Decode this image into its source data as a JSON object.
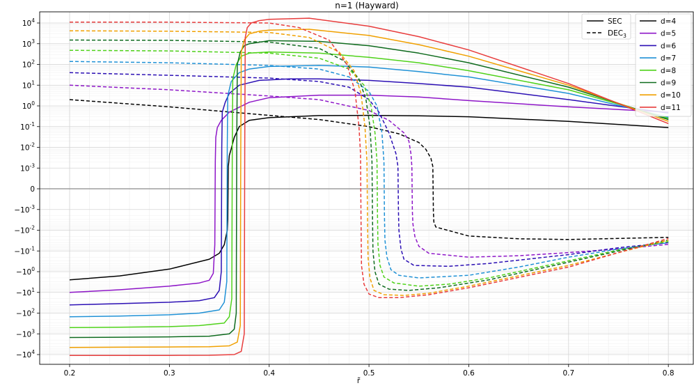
{
  "chart_data": {
    "type": "line",
    "title": "n=1 (Hayward)",
    "xlabel": "r̃",
    "ylabel": "",
    "xlim": [
      0.17,
      0.825
    ],
    "xticks": [
      0.2,
      0.3,
      0.4,
      0.5,
      0.6,
      0.7,
      0.8
    ],
    "yscale": "symlog",
    "linthresh": 0.001,
    "ylim": [
      -30000,
      30000
    ],
    "yticks": [
      {
        "value": 10000,
        "base": "10",
        "exp": "4"
      },
      {
        "value": 1000,
        "base": "10",
        "exp": "3"
      },
      {
        "value": 100,
        "base": "10",
        "exp": "2"
      },
      {
        "value": 10,
        "base": "10",
        "exp": "1"
      },
      {
        "value": 1,
        "base": "10",
        "exp": "0"
      },
      {
        "value": 0.1,
        "base": "10",
        "exp": "-1"
      },
      {
        "value": 0.01,
        "base": "10",
        "exp": "-2"
      },
      {
        "value": 0.001,
        "base": "10",
        "exp": "-3"
      },
      {
        "value": 0,
        "base": "0",
        "exp": ""
      },
      {
        "value": -0.001,
        "base": "−10",
        "exp": "-3"
      },
      {
        "value": -0.01,
        "base": "−10",
        "exp": "-2"
      },
      {
        "value": -0.1,
        "base": "−10",
        "exp": "-1"
      },
      {
        "value": -1,
        "base": "−10",
        "exp": "0"
      },
      {
        "value": -10,
        "base": "−10",
        "exp": "1"
      },
      {
        "value": -100,
        "base": "−10",
        "exp": "2"
      },
      {
        "value": -1000,
        "base": "−10",
        "exp": "3"
      },
      {
        "value": -10000,
        "base": "−10",
        "exp": "4"
      }
    ],
    "grid": true,
    "style_legend": {
      "placement": "top-right",
      "entries": [
        {
          "label": "SEC",
          "dash": "solid"
        },
        {
          "label": "DEC",
          "sub": "3",
          "dash": "dashed"
        }
      ]
    },
    "series_legend": {
      "placement": "top-right",
      "entries": [
        "d=4",
        "d=5",
        "d=6",
        "d=7",
        "d=8",
        "d=9",
        "d=10",
        "d=11"
      ]
    },
    "series": [
      {
        "name": "d=4",
        "color": "#000000",
        "sec": {
          "x": [
            0.2,
            0.25,
            0.3,
            0.34,
            0.35,
            0.355,
            0.358,
            0.3585,
            0.359,
            0.3595,
            0.36,
            0.362,
            0.365,
            0.37,
            0.38,
            0.4,
            0.45,
            0.5,
            0.55,
            0.6,
            0.7,
            0.8
          ],
          "y": [
            -2.5,
            -1.6,
            -0.75,
            -0.25,
            -0.13,
            -0.05,
            -0.01,
            -0.003,
            0.0012,
            0.002,
            0.004,
            0.0085,
            0.03,
            0.1,
            0.2,
            0.27,
            0.34,
            0.35,
            0.33,
            0.3,
            0.18,
            0.09
          ]
        },
        "dec": {
          "x": [
            0.2,
            0.3,
            0.4,
            0.45,
            0.5,
            0.53,
            0.55,
            0.557,
            0.562,
            0.564,
            0.5645,
            0.565,
            0.567,
            0.575,
            0.6,
            0.65,
            0.7,
            0.75,
            0.8
          ],
          "y": [
            2.0,
            0.9,
            0.35,
            0.22,
            0.1,
            0.045,
            0.017,
            0.008,
            0.003,
            0.0012,
            -0.0012,
            -0.004,
            -0.007,
            -0.009,
            -0.019,
            -0.026,
            -0.028,
            -0.025,
            -0.022
          ]
        }
      },
      {
        "name": "d=5",
        "color": "#8e16c8",
        "sec": {
          "x": [
            0.2,
            0.25,
            0.3,
            0.33,
            0.34,
            0.344,
            0.3455,
            0.346,
            0.3465,
            0.348,
            0.352,
            0.36,
            0.38,
            0.4,
            0.45,
            0.5,
            0.55,
            0.6,
            0.7,
            0.8
          ],
          "y": [
            -10,
            -7.5,
            -5,
            -3.5,
            -2.6,
            -1.2,
            -0.05,
            0.002,
            0.03,
            0.09,
            0.2,
            0.5,
            1.5,
            2.5,
            3.3,
            3.3,
            2.7,
            1.8,
            0.9,
            0.5
          ]
        },
        "dec": {
          "x": [
            0.2,
            0.3,
            0.4,
            0.45,
            0.5,
            0.52,
            0.535,
            0.54,
            0.542,
            0.543,
            0.5435,
            0.544,
            0.546,
            0.55,
            0.56,
            0.6,
            0.65,
            0.7,
            0.75,
            0.8
          ],
          "y": [
            10,
            6,
            3,
            2,
            0.6,
            0.2,
            0.05,
            0.02,
            0.005,
            0.0012,
            -0.0012,
            -0.005,
            -0.02,
            -0.06,
            -0.13,
            -0.2,
            -0.17,
            -0.12,
            -0.08,
            -0.048
          ]
        }
      },
      {
        "name": "d=6",
        "color": "#2b0fb4",
        "sec": {
          "x": [
            0.2,
            0.25,
            0.3,
            0.33,
            0.345,
            0.35,
            0.352,
            0.3525,
            0.353,
            0.356,
            0.36,
            0.37,
            0.39,
            0.42,
            0.45,
            0.5,
            0.55,
            0.6,
            0.7,
            0.8
          ],
          "y": [
            -40,
            -35,
            -30,
            -25,
            -18,
            -8,
            -1,
            0.01,
            0.5,
            1.5,
            4,
            10,
            17,
            20,
            20,
            17,
            12,
            8,
            2,
            0.45
          ]
        },
        "dec": {
          "x": [
            0.2,
            0.3,
            0.4,
            0.45,
            0.48,
            0.5,
            0.51,
            0.52,
            0.527,
            0.529,
            0.5295,
            0.53,
            0.532,
            0.535,
            0.545,
            0.58,
            0.62,
            0.7,
            0.75,
            0.8
          ],
          "y": [
            40,
            30,
            22,
            15,
            8,
            2,
            0.5,
            0.05,
            0.005,
            0.0012,
            -0.0012,
            -0.01,
            -0.08,
            -0.25,
            -0.5,
            -0.55,
            -0.4,
            -0.15,
            -0.07,
            -0.04
          ]
        }
      },
      {
        "name": "d=7",
        "color": "#1f91d6",
        "sec": {
          "x": [
            0.2,
            0.25,
            0.3,
            0.33,
            0.35,
            0.355,
            0.3575,
            0.358,
            0.3585,
            0.362,
            0.37,
            0.38,
            0.4,
            0.45,
            0.5,
            0.55,
            0.6,
            0.7,
            0.8
          ],
          "y": [
            -150,
            -140,
            -120,
            -100,
            -70,
            -30,
            -3,
            0.01,
            3,
            15,
            40,
            60,
            80,
            90,
            75,
            45,
            25,
            4,
            0.28
          ]
        },
        "dec": {
          "x": [
            0.2,
            0.3,
            0.4,
            0.45,
            0.48,
            0.5,
            0.508,
            0.513,
            0.515,
            0.5155,
            0.516,
            0.518,
            0.522,
            0.53,
            0.55,
            0.6,
            0.65,
            0.7,
            0.75,
            0.8
          ],
          "y": [
            140,
            120,
            90,
            60,
            25,
            5,
            1,
            0.05,
            0.002,
            -0.002,
            -0.03,
            -0.2,
            -0.8,
            -1.5,
            -2,
            -1.5,
            -0.6,
            -0.2,
            -0.08,
            -0.04
          ]
        }
      },
      {
        "name": "d=8",
        "color": "#4fd21a",
        "sec": {
          "x": [
            0.2,
            0.25,
            0.3,
            0.33,
            0.355,
            0.36,
            0.3625,
            0.363,
            0.3635,
            0.367,
            0.372,
            0.38,
            0.4,
            0.45,
            0.5,
            0.55,
            0.6,
            0.7,
            0.8
          ],
          "y": [
            -500,
            -480,
            -450,
            -400,
            -300,
            -150,
            -20,
            0.01,
            20,
            100,
            250,
            350,
            400,
            350,
            220,
            120,
            50,
            6,
            0.25
          ]
        },
        "dec": {
          "x": [
            0.2,
            0.3,
            0.4,
            0.45,
            0.48,
            0.495,
            0.502,
            0.506,
            0.508,
            0.5085,
            0.509,
            0.511,
            0.515,
            0.525,
            0.55,
            0.58,
            0.62,
            0.7,
            0.75,
            0.8
          ],
          "y": [
            480,
            450,
            350,
            200,
            60,
            10,
            1,
            0.05,
            0.002,
            -0.002,
            -0.05,
            -0.5,
            -1.8,
            -3.5,
            -5,
            -4,
            -2,
            -0.3,
            -0.09,
            -0.035
          ]
        }
      },
      {
        "name": "d=9",
        "color": "#0f6b1e",
        "sec": {
          "x": [
            0.2,
            0.25,
            0.3,
            0.34,
            0.36,
            0.365,
            0.367,
            0.3675,
            0.368,
            0.371,
            0.375,
            0.38,
            0.4,
            0.45,
            0.5,
            0.55,
            0.6,
            0.7,
            0.8
          ],
          "y": [
            -1500,
            -1450,
            -1400,
            -1300,
            -1000,
            -600,
            -100,
            0.01,
            100,
            400,
            800,
            1000,
            1400,
            1300,
            800,
            350,
            120,
            8,
            0.22
          ]
        },
        "dec": {
          "x": [
            0.2,
            0.3,
            0.4,
            0.45,
            0.475,
            0.49,
            0.497,
            0.501,
            0.503,
            0.5035,
            0.504,
            0.506,
            0.51,
            0.52,
            0.54,
            0.57,
            0.62,
            0.7,
            0.75,
            0.8
          ],
          "y": [
            1500,
            1450,
            1200,
            600,
            150,
            20,
            2,
            0.1,
            0.002,
            -0.002,
            -0.1,
            -1,
            -4,
            -7,
            -8,
            -6,
            -2.5,
            -0.35,
            -0.1,
            -0.03
          ]
        }
      },
      {
        "name": "d=10",
        "color": "#f0a000",
        "sec": {
          "x": [
            0.2,
            0.25,
            0.3,
            0.34,
            0.36,
            0.368,
            0.371,
            0.3715,
            0.372,
            0.375,
            0.38,
            0.39,
            0.4,
            0.44,
            0.5,
            0.55,
            0.6,
            0.7,
            0.8
          ],
          "y": [
            -4500,
            -4400,
            -4300,
            -4200,
            -3800,
            -2500,
            -400,
            0.01,
            400,
            1500,
            3000,
            4000,
            4500,
            5000,
            2500,
            900,
            250,
            10,
            0.18
          ]
        },
        "dec": {
          "x": [
            0.2,
            0.3,
            0.4,
            0.44,
            0.47,
            0.485,
            0.492,
            0.496,
            0.498,
            0.4985,
            0.499,
            0.501,
            0.505,
            0.515,
            0.535,
            0.56,
            0.6,
            0.7,
            0.75,
            0.8
          ],
          "y": [
            4200,
            4000,
            3500,
            2000,
            400,
            50,
            4,
            0.1,
            0.002,
            -0.002,
            -0.2,
            -2,
            -8,
            -13,
            -14,
            -11,
            -5,
            -0.5,
            -0.12,
            -0.03
          ]
        }
      },
      {
        "name": "d=11",
        "color": "#e83c3c",
        "sec": {
          "x": [
            0.2,
            0.25,
            0.3,
            0.34,
            0.365,
            0.372,
            0.375,
            0.3755,
            0.376,
            0.378,
            0.382,
            0.39,
            0.4,
            0.44,
            0.5,
            0.55,
            0.6,
            0.7,
            0.8
          ],
          "y": [
            -11000,
            -11000,
            -11000,
            -10800,
            -10000,
            -7000,
            -1000,
            0.01,
            2000,
            6000,
            10000,
            13000,
            15000,
            17000,
            7000,
            2200,
            500,
            12,
            0.14
          ]
        },
        "dec": {
          "x": [
            0.2,
            0.3,
            0.4,
            0.43,
            0.46,
            0.478,
            0.486,
            0.49,
            0.4915,
            0.492,
            0.4925,
            0.495,
            0.5,
            0.51,
            0.53,
            0.56,
            0.6,
            0.7,
            0.75,
            0.8
          ],
          "y": [
            11000,
            11000,
            10000,
            6000,
            1500,
            100,
            5,
            0.1,
            0.005,
            -0.002,
            -0.5,
            -4,
            -12,
            -18,
            -18,
            -13,
            -6,
            -0.6,
            -0.12,
            -0.025
          ]
        }
      }
    ]
  }
}
